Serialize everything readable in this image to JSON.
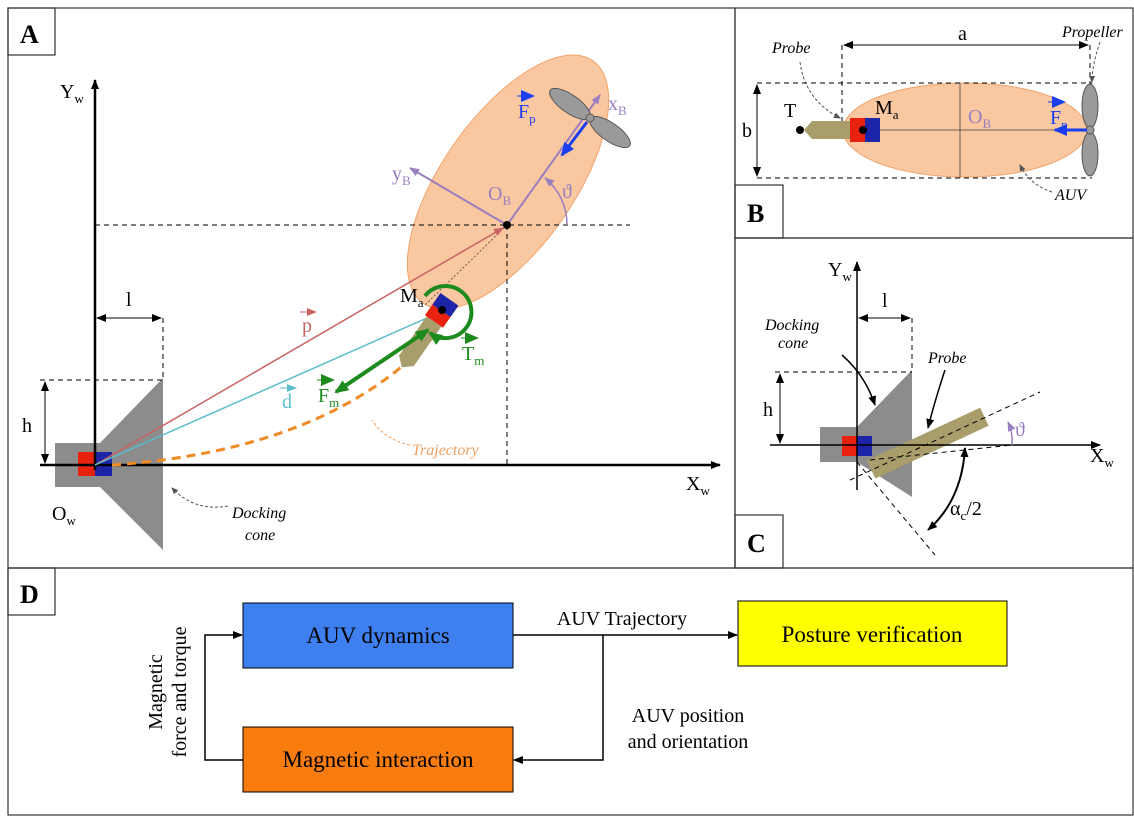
{
  "panel_a": {
    "letter": "A",
    "y_axis": {
      "main": "Y",
      "sub": "w"
    },
    "x_axis": {
      "main": "X",
      "sub": "w"
    },
    "origin": {
      "main": "O",
      "sub": "w"
    },
    "l": "l",
    "h": "h",
    "docking_cone": [
      "Docking",
      "cone"
    ],
    "p": "p",
    "d": "d",
    "f_m": {
      "main": "F",
      "sub": "m"
    },
    "t_m": {
      "main": "T",
      "sub": "m"
    },
    "m_a": {
      "main": "M",
      "sub": "a"
    },
    "trajectory": "Trajectory",
    "y_b": {
      "main": "y",
      "sub": "B"
    },
    "o_b": {
      "main": "O",
      "sub": "B"
    },
    "f_p": {
      "main": "F",
      "sub": "p"
    },
    "x_b": {
      "main": "x",
      "sub": "B"
    },
    "theta": "ϑ"
  },
  "panel_b": {
    "letter": "B",
    "probe": "Probe",
    "a": "a",
    "propeller": "Propeller",
    "b": "b",
    "t": "T",
    "m_a": {
      "main": "M",
      "sub": "a"
    },
    "o_b": {
      "main": "O",
      "sub": "B"
    },
    "f_p": {
      "main": "F",
      "sub": "p"
    },
    "auv": "AUV"
  },
  "panel_c": {
    "letter": "C",
    "y_axis": {
      "main": "Y",
      "sub": "w"
    },
    "l": "l",
    "docking_cone": [
      "Docking",
      "cone"
    ],
    "probe": "Probe",
    "h": "h",
    "theta": "ϑ",
    "x_axis": {
      "main": "X",
      "sub": "w"
    },
    "alpha": {
      "main": "α",
      "sub": "c",
      "rest": "/2"
    }
  },
  "panel_d": {
    "letter": "D",
    "blocks": [
      "AUV dynamics",
      "Posture verification",
      "Magnetic interaction"
    ],
    "trajectory": "AUV Trajectory",
    "feedback": [
      "AUV position",
      "and orientation"
    ],
    "loop": [
      "Magnetic",
      "force and torque"
    ]
  }
}
